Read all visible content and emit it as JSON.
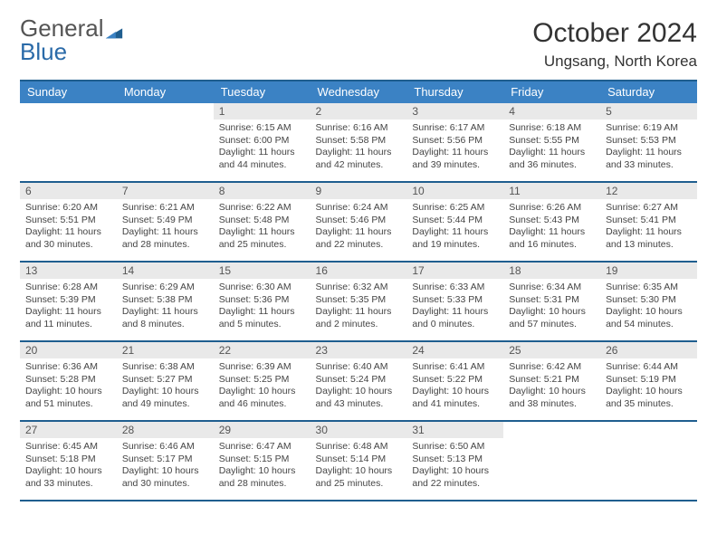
{
  "colors": {
    "accent": "#3b82c4",
    "border": "#1f5e8f",
    "daynum_bg": "#e9e9e9",
    "text": "#222",
    "muted": "#444",
    "bg": "#ffffff"
  },
  "logo": {
    "line1": "General",
    "line2": "Blue",
    "swoosh_color": "#1f5e8f"
  },
  "title": "October 2024",
  "location": "Ungsang, North Korea",
  "weekday_headers": [
    "Sunday",
    "Monday",
    "Tuesday",
    "Wednesday",
    "Thursday",
    "Friday",
    "Saturday"
  ],
  "weeks": [
    [
      null,
      null,
      {
        "day": "1",
        "lines": [
          "Sunrise: 6:15 AM",
          "Sunset: 6:00 PM",
          "Daylight: 11 hours and 44 minutes."
        ]
      },
      {
        "day": "2",
        "lines": [
          "Sunrise: 6:16 AM",
          "Sunset: 5:58 PM",
          "Daylight: 11 hours and 42 minutes."
        ]
      },
      {
        "day": "3",
        "lines": [
          "Sunrise: 6:17 AM",
          "Sunset: 5:56 PM",
          "Daylight: 11 hours and 39 minutes."
        ]
      },
      {
        "day": "4",
        "lines": [
          "Sunrise: 6:18 AM",
          "Sunset: 5:55 PM",
          "Daylight: 11 hours and 36 minutes."
        ]
      },
      {
        "day": "5",
        "lines": [
          "Sunrise: 6:19 AM",
          "Sunset: 5:53 PM",
          "Daylight: 11 hours and 33 minutes."
        ]
      }
    ],
    [
      {
        "day": "6",
        "lines": [
          "Sunrise: 6:20 AM",
          "Sunset: 5:51 PM",
          "Daylight: 11 hours and 30 minutes."
        ]
      },
      {
        "day": "7",
        "lines": [
          "Sunrise: 6:21 AM",
          "Sunset: 5:49 PM",
          "Daylight: 11 hours and 28 minutes."
        ]
      },
      {
        "day": "8",
        "lines": [
          "Sunrise: 6:22 AM",
          "Sunset: 5:48 PM",
          "Daylight: 11 hours and 25 minutes."
        ]
      },
      {
        "day": "9",
        "lines": [
          "Sunrise: 6:24 AM",
          "Sunset: 5:46 PM",
          "Daylight: 11 hours and 22 minutes."
        ]
      },
      {
        "day": "10",
        "lines": [
          "Sunrise: 6:25 AM",
          "Sunset: 5:44 PM",
          "Daylight: 11 hours and 19 minutes."
        ]
      },
      {
        "day": "11",
        "lines": [
          "Sunrise: 6:26 AM",
          "Sunset: 5:43 PM",
          "Daylight: 11 hours and 16 minutes."
        ]
      },
      {
        "day": "12",
        "lines": [
          "Sunrise: 6:27 AM",
          "Sunset: 5:41 PM",
          "Daylight: 11 hours and 13 minutes."
        ]
      }
    ],
    [
      {
        "day": "13",
        "lines": [
          "Sunrise: 6:28 AM",
          "Sunset: 5:39 PM",
          "Daylight: 11 hours and 11 minutes."
        ]
      },
      {
        "day": "14",
        "lines": [
          "Sunrise: 6:29 AM",
          "Sunset: 5:38 PM",
          "Daylight: 11 hours and 8 minutes."
        ]
      },
      {
        "day": "15",
        "lines": [
          "Sunrise: 6:30 AM",
          "Sunset: 5:36 PM",
          "Daylight: 11 hours and 5 minutes."
        ]
      },
      {
        "day": "16",
        "lines": [
          "Sunrise: 6:32 AM",
          "Sunset: 5:35 PM",
          "Daylight: 11 hours and 2 minutes."
        ]
      },
      {
        "day": "17",
        "lines": [
          "Sunrise: 6:33 AM",
          "Sunset: 5:33 PM",
          "Daylight: 11 hours and 0 minutes."
        ]
      },
      {
        "day": "18",
        "lines": [
          "Sunrise: 6:34 AM",
          "Sunset: 5:31 PM",
          "Daylight: 10 hours and 57 minutes."
        ]
      },
      {
        "day": "19",
        "lines": [
          "Sunrise: 6:35 AM",
          "Sunset: 5:30 PM",
          "Daylight: 10 hours and 54 minutes."
        ]
      }
    ],
    [
      {
        "day": "20",
        "lines": [
          "Sunrise: 6:36 AM",
          "Sunset: 5:28 PM",
          "Daylight: 10 hours and 51 minutes."
        ]
      },
      {
        "day": "21",
        "lines": [
          "Sunrise: 6:38 AM",
          "Sunset: 5:27 PM",
          "Daylight: 10 hours and 49 minutes."
        ]
      },
      {
        "day": "22",
        "lines": [
          "Sunrise: 6:39 AM",
          "Sunset: 5:25 PM",
          "Daylight: 10 hours and 46 minutes."
        ]
      },
      {
        "day": "23",
        "lines": [
          "Sunrise: 6:40 AM",
          "Sunset: 5:24 PM",
          "Daylight: 10 hours and 43 minutes."
        ]
      },
      {
        "day": "24",
        "lines": [
          "Sunrise: 6:41 AM",
          "Sunset: 5:22 PM",
          "Daylight: 10 hours and 41 minutes."
        ]
      },
      {
        "day": "25",
        "lines": [
          "Sunrise: 6:42 AM",
          "Sunset: 5:21 PM",
          "Daylight: 10 hours and 38 minutes."
        ]
      },
      {
        "day": "26",
        "lines": [
          "Sunrise: 6:44 AM",
          "Sunset: 5:19 PM",
          "Daylight: 10 hours and 35 minutes."
        ]
      }
    ],
    [
      {
        "day": "27",
        "lines": [
          "Sunrise: 6:45 AM",
          "Sunset: 5:18 PM",
          "Daylight: 10 hours and 33 minutes."
        ]
      },
      {
        "day": "28",
        "lines": [
          "Sunrise: 6:46 AM",
          "Sunset: 5:17 PM",
          "Daylight: 10 hours and 30 minutes."
        ]
      },
      {
        "day": "29",
        "lines": [
          "Sunrise: 6:47 AM",
          "Sunset: 5:15 PM",
          "Daylight: 10 hours and 28 minutes."
        ]
      },
      {
        "day": "30",
        "lines": [
          "Sunrise: 6:48 AM",
          "Sunset: 5:14 PM",
          "Daylight: 10 hours and 25 minutes."
        ]
      },
      {
        "day": "31",
        "lines": [
          "Sunrise: 6:50 AM",
          "Sunset: 5:13 PM",
          "Daylight: 10 hours and 22 minutes."
        ]
      },
      null,
      null
    ]
  ]
}
